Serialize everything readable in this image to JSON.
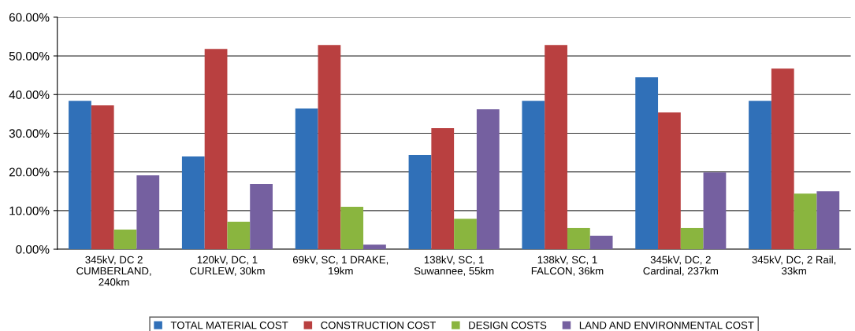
{
  "chart_data": {
    "type": "bar",
    "categories": [
      "345kV, DC 2\nCUMBERLAND,\n240km",
      "120kV, DC, 1\nCURLEW, 30km",
      "69kV, SC, 1 DRAKE,\n19km",
      "138kV, SC, 1\nSuwannee, 55km",
      "138kV, SC, 1\nFALCON, 36km",
      "345kV, DC, 2\nCardinal, 237km",
      "345kV, DC, 2 Rail,\n33km"
    ],
    "series": [
      {
        "name": "TOTAL MATERIAL COST",
        "color": "#3070b8",
        "values": [
          38.4,
          24.0,
          36.4,
          24.4,
          38.4,
          44.5,
          38.4
        ]
      },
      {
        "name": "CONSTRUCTION COST",
        "color": "#b94040",
        "values": [
          37.2,
          51.8,
          52.8,
          31.3,
          52.8,
          35.4,
          46.7
        ]
      },
      {
        "name": "DESIGN COSTS",
        "color": "#8ab53f",
        "values": [
          5.1,
          7.1,
          11.0,
          7.9,
          5.5,
          5.5,
          14.4
        ]
      },
      {
        "name": "LAND AND ENVIRONMENTAL COST",
        "color": "#7560a0",
        "values": [
          19.1,
          16.9,
          1.2,
          36.2,
          3.5,
          19.9,
          15.0
        ]
      }
    ],
    "ylim": [
      0,
      60
    ],
    "yticks": [
      {
        "value": 0,
        "label": "0.00%"
      },
      {
        "value": 10,
        "label": "10.00%"
      },
      {
        "value": 20,
        "label": "20.00%"
      },
      {
        "value": 30,
        "label": "30.00%"
      },
      {
        "value": 40,
        "label": "40.00%"
      },
      {
        "value": 50,
        "label": "50.00%"
      },
      {
        "value": 60,
        "label": "60.00%"
      }
    ],
    "grid": "y",
    "legend": "bottom"
  }
}
